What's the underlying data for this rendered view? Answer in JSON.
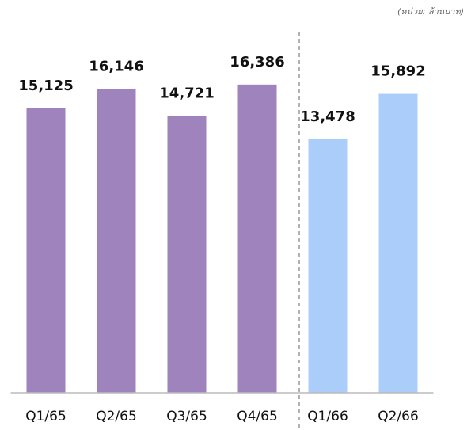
{
  "chart_data": {
    "type": "bar",
    "annotation": "(หน่วย: ล้านบาท)",
    "categories": [
      "Q1/65",
      "Q2/65",
      "Q3/65",
      "Q4/65",
      "Q1/66",
      "Q2/66"
    ],
    "values": [
      15125,
      16146,
      14721,
      16386,
      13478,
      15892
    ],
    "value_labels": [
      "15,125",
      "16,146",
      "14,721",
      "16,386",
      "13,478",
      "15,892"
    ],
    "colors": [
      "#9e83bd",
      "#9e83bd",
      "#9e83bd",
      "#9e83bd",
      "#aacdf9",
      "#aacdf9"
    ],
    "ylim": [
      0,
      20000
    ]
  }
}
